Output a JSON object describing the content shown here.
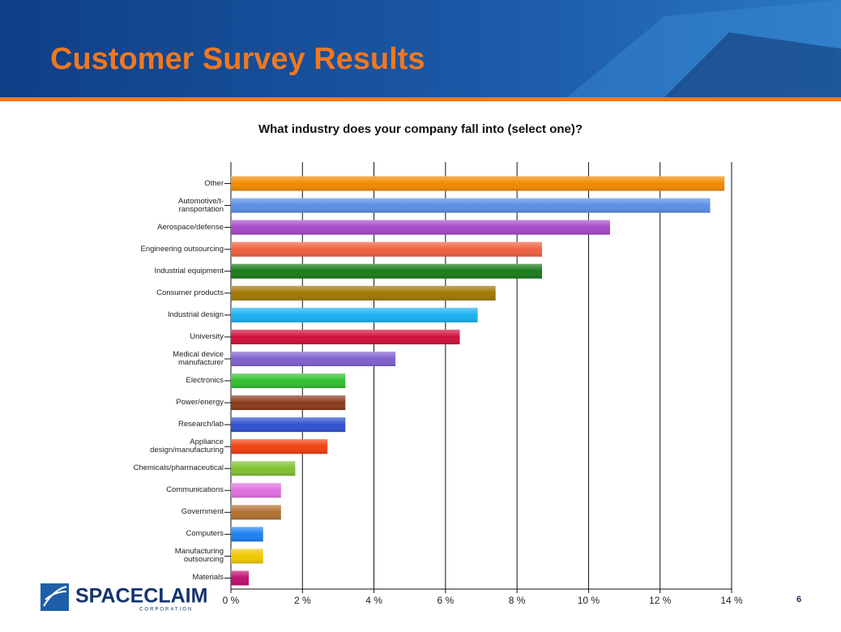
{
  "slide": {
    "title": "Customer Survey Results",
    "page_number": "6",
    "logo": {
      "name": "SPACECLAIM",
      "subtitle": "CORPORATION"
    }
  },
  "chart_data": {
    "type": "bar",
    "orientation": "horizontal",
    "title": "What industry does your company fall into (select one)?",
    "categories": [
      "Other",
      "Automotive/t-\nransportation",
      "Aerospace/defense",
      "Engineering outsourcing",
      "Industrial equipment",
      "Consumer products",
      "Industrial design",
      "University",
      "Medical device\nmanufacturer",
      "Electronics",
      "Power/energy",
      "Research/lab",
      "Appliance\ndesign/manufacturing",
      "Chemicals/pharmaceutical",
      "Communications",
      "Government",
      "Computers",
      "Manufacturing\noutsourcing",
      "Materials"
    ],
    "values": [
      13.8,
      13.4,
      10.6,
      8.7,
      8.7,
      7.4,
      6.9,
      6.4,
      4.6,
      3.2,
      3.2,
      3.2,
      2.7,
      1.8,
      1.4,
      1.4,
      0.9,
      0.9,
      0.5
    ],
    "colors": [
      "#f08a00",
      "#5b8ee6",
      "#a64ac9",
      "#f06040",
      "#1a7a1a",
      "#a07800",
      "#1ab0f0",
      "#d0103a",
      "#8060d0",
      "#30c030",
      "#8b3a1a",
      "#3050d0",
      "#f04010",
      "#80c030",
      "#e070e0",
      "#b07030",
      "#1a80f0",
      "#f0c800",
      "#c01070"
    ],
    "xlim": [
      0,
      14
    ],
    "xticks": [
      {
        "value": 0,
        "label": "0 %"
      },
      {
        "value": 2,
        "label": "2 %"
      },
      {
        "value": 4,
        "label": "4 %"
      },
      {
        "value": 6,
        "label": "6 %"
      },
      {
        "value": 8,
        "label": "8 %"
      },
      {
        "value": 10,
        "label": "10 %"
      },
      {
        "value": 12,
        "label": "12 %"
      },
      {
        "value": 14,
        "label": "14 %"
      }
    ],
    "grid": true
  }
}
